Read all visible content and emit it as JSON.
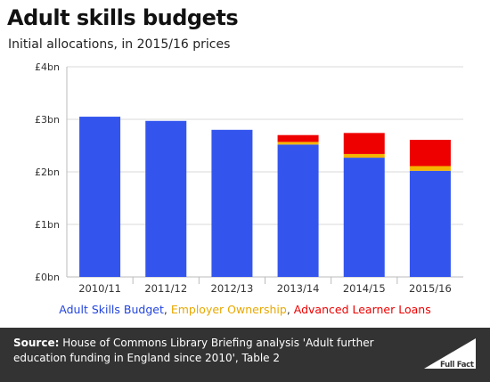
{
  "header": {
    "title": "Adult skills budgets",
    "subtitle": "Initial allocations, in 2015/16 prices"
  },
  "chart_data": {
    "type": "bar",
    "stacked": true,
    "title": "Adult skills budgets",
    "subtitle": "Initial allocations, in 2015/16 prices",
    "xlabel": "",
    "ylabel": "",
    "categories": [
      "2010/11",
      "2011/12",
      "2012/13",
      "2013/14",
      "2014/15",
      "2015/16"
    ],
    "series": [
      {
        "name": "Adult Skills Budget",
        "color": "#3355ee",
        "values": [
          3.05,
          2.97,
          2.8,
          2.52,
          2.27,
          2.02
        ]
      },
      {
        "name": "Employer Ownership",
        "color": "#f4b400",
        "values": [
          0,
          0,
          0,
          0.05,
          0.07,
          0.09
        ]
      },
      {
        "name": "Advanced Learner Loans",
        "color": "#ee0000",
        "values": [
          0,
          0,
          0,
          0.13,
          0.4,
          0.5
        ]
      }
    ],
    "ylim": [
      0,
      4
    ],
    "yticks": [
      0,
      1,
      2,
      3,
      4
    ],
    "ytick_labels": [
      "£0bn",
      "£1bn",
      "£2bn",
      "£3bn",
      "£4bn"
    ],
    "grid": true,
    "legend_position": "bottom"
  },
  "legend": {
    "separator": ", ",
    "items": [
      {
        "label": "Adult Skills Budget",
        "color": "#2244dd"
      },
      {
        "label": "Employer Ownership",
        "color": "#e8a800"
      },
      {
        "label": "Advanced Learner Loans",
        "color": "#ee0000"
      }
    ]
  },
  "footer": {
    "source_label": "Source:",
    "source_text": " House of Commons Library Briefing analysis 'Adult further education funding in England since 2010', Table 2",
    "logo_text": "Full Fact"
  }
}
